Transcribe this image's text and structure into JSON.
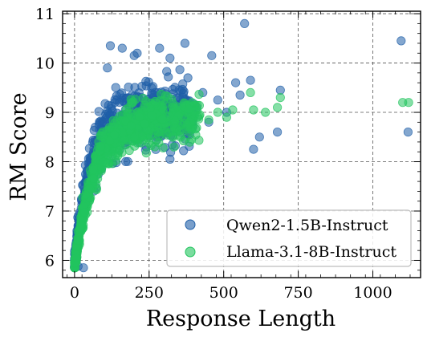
{
  "chart_data": {
    "type": "scatter",
    "title": "",
    "xlabel": "Response Length",
    "ylabel": "RM Score",
    "xlim": [
      -40,
      1160
    ],
    "ylim": [
      5.65,
      11.05
    ],
    "xticks": [
      0,
      250,
      500,
      750,
      1000
    ],
    "yticks": [
      6,
      7,
      8,
      9,
      10,
      11
    ],
    "xtick_labels": [
      "0",
      "250",
      "500",
      "750",
      "1000"
    ],
    "ytick_labels": [
      "6",
      "7",
      "8",
      "9",
      "10",
      "11"
    ],
    "grid": true,
    "legend_position": "bottom-right",
    "series": [
      {
        "name": "Qwen2-1.5B-Instruct",
        "color": "#1f5fa8",
        "trend": {
          "min_x": 0,
          "max_x": 400,
          "y0": 5.9,
          "ymax": 9.0,
          "k": 55,
          "spread": 0.55,
          "count": 650
        },
        "points": [
          [
            570,
            10.8
          ],
          [
            1095,
            10.45
          ],
          [
            1118,
            8.6
          ],
          [
            620,
            8.5
          ],
          [
            680,
            8.6
          ],
          [
            690,
            9.45
          ],
          [
            600,
            8.25
          ],
          [
            555,
            9.35
          ],
          [
            590,
            9.65
          ],
          [
            540,
            9.6
          ],
          [
            480,
            9.25
          ],
          [
            460,
            10.15
          ],
          [
            370,
            10.4
          ],
          [
            320,
            10.1
          ],
          [
            285,
            10.3
          ],
          [
            210,
            10.2
          ],
          [
            200,
            10.15
          ],
          [
            160,
            10.3
          ],
          [
            120,
            10.35
          ],
          [
            110,
            9.9
          ],
          [
            320,
            8.05
          ],
          [
            430,
            9.4
          ],
          [
            510,
            9.0
          ],
          [
            450,
            8.8
          ],
          [
            12,
            5.88
          ],
          [
            30,
            5.85
          ],
          [
            240,
            8.3
          ],
          [
            300,
            8.6
          ],
          [
            380,
            9.7
          ],
          [
            410,
            9.1
          ]
        ]
      },
      {
        "name": "Llama-3.1-8B-Instruct",
        "color": "#22c45e",
        "trend": {
          "min_x": 0,
          "max_x": 420,
          "y0": 5.9,
          "ymax": 8.9,
          "k": 70,
          "spread": 0.4,
          "count": 650
        },
        "points": [
          [
            1100,
            9.2
          ],
          [
            1120,
            9.2
          ],
          [
            690,
            9.3
          ],
          [
            680,
            9.1
          ],
          [
            590,
            9.4
          ],
          [
            600,
            9.05
          ],
          [
            640,
            9.0
          ],
          [
            530,
            9.05
          ],
          [
            510,
            8.9
          ],
          [
            480,
            9.0
          ],
          [
            450,
            8.85
          ],
          [
            420,
            8.95
          ],
          [
            0,
            5.95
          ],
          [
            5,
            6.05
          ]
        ]
      }
    ]
  }
}
